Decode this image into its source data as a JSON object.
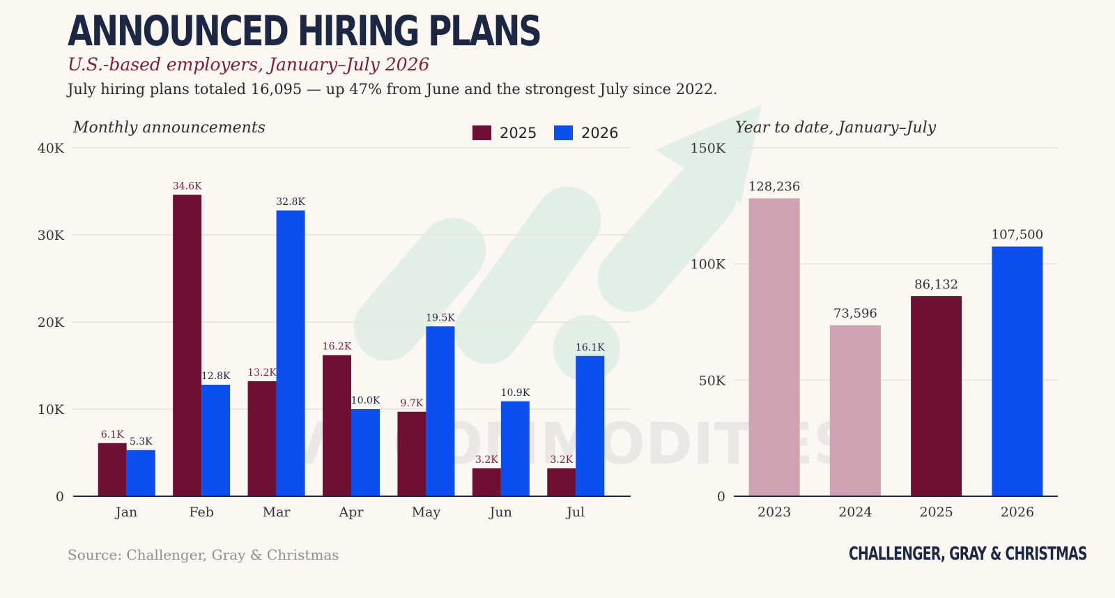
{
  "header": {
    "title": "ANNOUNCED HIRING PLANS",
    "subtitle": "U.S.-based employers, January–July 2026",
    "description": "July hiring plans totaled 16,095 — up 47% from June and the strongest July since 2022."
  },
  "footer": {
    "source": "Source: Challenger, Gray & Christmas",
    "brand": "CHALLENGER, GRAY & CHRISTMAS"
  },
  "watermark": {
    "text": "VR COMMODITIES"
  },
  "colors": {
    "series_2025": "#6e0f33",
    "series_2026": "#0b4ff0",
    "series_past": "#cfa1b3",
    "label_2025": "#7d1c3d",
    "label_2026": "#1c2744",
    "grid": "#e7e3d6",
    "axis": "#1c2744",
    "watermark_arrow": "#cfe8dc"
  },
  "chart_data": [
    {
      "type": "bar",
      "title": "Monthly announcements",
      "categories": [
        "Jan",
        "Feb",
        "Mar",
        "Apr",
        "May",
        "Jun",
        "Jul"
      ],
      "series": [
        {
          "name": "2025",
          "values": [
            6100,
            34600,
            13200,
            16200,
            9700,
            3200,
            3200
          ],
          "labels": [
            "6.1K",
            "34.6K",
            "13.2K",
            "16.2K",
            "9.7K",
            "3.2K",
            "3.2K"
          ]
        },
        {
          "name": "2026",
          "values": [
            5300,
            12800,
            32800,
            10000,
            19500,
            10900,
            16100
          ],
          "labels": [
            "5.3K",
            "12.8K",
            "32.8K",
            "10.0K",
            "19.5K",
            "10.9K",
            "16.1K"
          ]
        }
      ],
      "ylim": [
        0,
        40000
      ],
      "yticks": [
        0,
        10000,
        20000,
        30000,
        40000
      ],
      "ytick_labels": [
        "0",
        "10K",
        "20K",
        "30K",
        "40K"
      ],
      "grid": true,
      "legend": "top-right"
    },
    {
      "type": "bar",
      "title": "Year to date, January–July",
      "categories": [
        "2023",
        "2024",
        "2025",
        "2026"
      ],
      "values": [
        128236,
        73596,
        86132,
        107500
      ],
      "labels": [
        "128,236",
        "73,596",
        "86,132",
        "107,500"
      ],
      "colors": [
        "#cfa1b3",
        "#cfa1b3",
        "#6e0f33",
        "#0b4ff0"
      ],
      "ylim": [
        0,
        150000
      ],
      "yticks": [
        0,
        50000,
        100000,
        150000
      ],
      "ytick_labels": [
        "0",
        "50K",
        "100K",
        "150K"
      ],
      "grid": true
    }
  ]
}
